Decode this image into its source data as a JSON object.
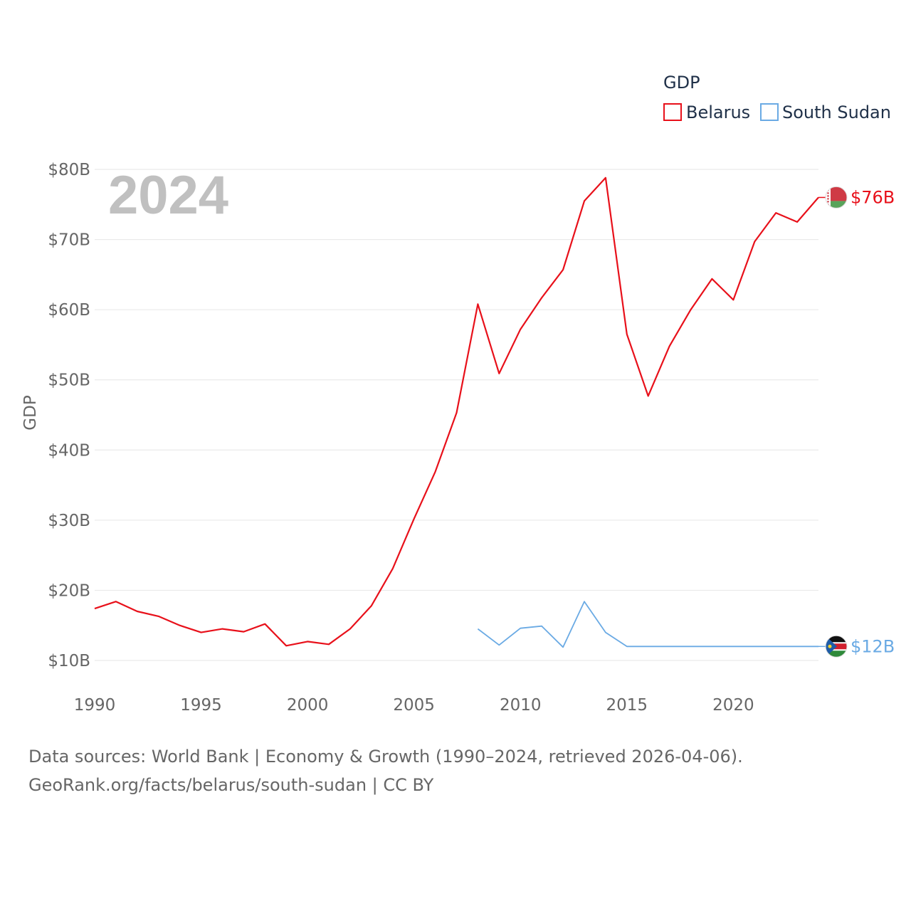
{
  "chart_data": {
    "type": "line",
    "legend_title": "GDP",
    "ylabel": "GDP",
    "year_label": "2024",
    "ylim": [
      10,
      80
    ],
    "xlim": [
      1990,
      2024
    ],
    "x_ticks": [
      "1990",
      "1995",
      "2000",
      "2005",
      "2010",
      "2015",
      "2020"
    ],
    "y_ticks": [
      "$10B",
      "$20B",
      "$30B",
      "$40B",
      "$50B",
      "$60B",
      "$70B",
      "$80B"
    ],
    "legend_position": "top-right",
    "series": [
      {
        "name": "Belarus",
        "color": "#e8101a",
        "end_label": "$76B",
        "points": [
          [
            1990,
            17.4
          ],
          [
            1991,
            18.4
          ],
          [
            1992,
            17.0
          ],
          [
            1993,
            16.3
          ],
          [
            1994,
            15.0
          ],
          [
            1995,
            14.0
          ],
          [
            1996,
            14.5
          ],
          [
            1997,
            14.1
          ],
          [
            1998,
            15.2
          ],
          [
            1999,
            12.1
          ],
          [
            2000,
            12.7
          ],
          [
            2001,
            12.3
          ],
          [
            2002,
            14.5
          ],
          [
            2003,
            17.8
          ],
          [
            2004,
            23.1
          ],
          [
            2005,
            30.2
          ],
          [
            2006,
            36.9
          ],
          [
            2007,
            45.3
          ],
          [
            2008,
            60.8
          ],
          [
            2009,
            50.9
          ],
          [
            2010,
            57.2
          ],
          [
            2011,
            61.7
          ],
          [
            2012,
            65.7
          ],
          [
            2013,
            75.5
          ],
          [
            2014,
            78.8
          ],
          [
            2015,
            56.5
          ],
          [
            2016,
            47.7
          ],
          [
            2017,
            54.8
          ],
          [
            2018,
            60.0
          ],
          [
            2019,
            64.4
          ],
          [
            2020,
            61.4
          ],
          [
            2021,
            69.7
          ],
          [
            2022,
            73.8
          ],
          [
            2023,
            72.5
          ],
          [
            2024,
            76.0
          ]
        ]
      },
      {
        "name": "South Sudan",
        "color": "#6aaae4",
        "end_label": "$12B",
        "points": [
          [
            2008,
            14.5
          ],
          [
            2009,
            12.2
          ],
          [
            2010,
            14.6
          ],
          [
            2011,
            14.9
          ],
          [
            2012,
            11.9
          ],
          [
            2013,
            18.4
          ],
          [
            2014,
            14.0
          ],
          [
            2015,
            12.0
          ],
          [
            2016,
            12.0
          ],
          [
            2017,
            12.0
          ],
          [
            2018,
            12.0
          ],
          [
            2019,
            12.0
          ],
          [
            2020,
            12.0
          ],
          [
            2021,
            12.0
          ],
          [
            2022,
            12.0
          ],
          [
            2023,
            12.0
          ],
          [
            2024,
            12.0
          ]
        ]
      }
    ]
  },
  "footer": {
    "sources": "Data sources: World Bank | Economy & Growth (1990–2024, retrieved 2026-04-06).",
    "link": "GeoRank.org/facts/belarus/south-sudan | CC BY"
  }
}
